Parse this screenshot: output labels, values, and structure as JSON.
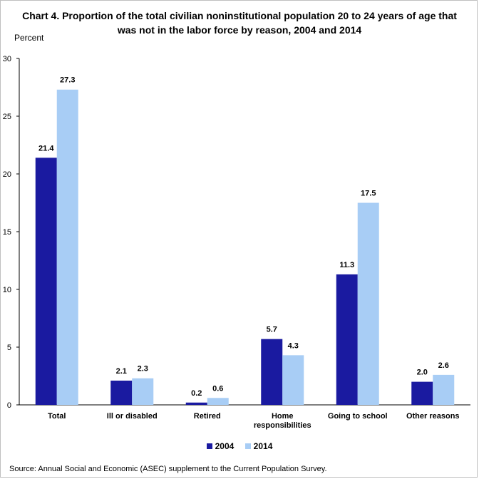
{
  "chart_data": {
    "type": "bar",
    "title": "Chart 4.  Proportion of the total civilian noninstitutional population 20 to 24 years of age that was not in the labor force by reason, 2004 and 2014",
    "ylabel": "Percent",
    "xlabel": "",
    "ylim": [
      0,
      30
    ],
    "yticks": [
      "0",
      "5",
      "10",
      "15",
      "20",
      "25",
      "30"
    ],
    "categories": [
      "Total",
      "Ill or disabled",
      "Retired",
      "Home responsibilities",
      "Going to school",
      "Other reasons"
    ],
    "series": [
      {
        "name": "2004",
        "color": "#1a1aa0",
        "values": [
          21.4,
          2.1,
          0.2,
          5.7,
          11.3,
          2.0
        ],
        "labels": [
          "21.4",
          "2.1",
          "0.2",
          "5.7",
          "11.3",
          "2.0"
        ]
      },
      {
        "name": "2014",
        "color": "#a8cdf5",
        "values": [
          27.3,
          2.3,
          0.6,
          4.3,
          17.5,
          2.6
        ],
        "labels": [
          "27.3",
          "2.3",
          "0.6",
          "4.3",
          "17.5",
          "2.6"
        ]
      }
    ],
    "grid": false,
    "legend": "bottom"
  },
  "source": "Source:  Annual Social and Economic (ASEC) supplement to the Current Population Survey."
}
